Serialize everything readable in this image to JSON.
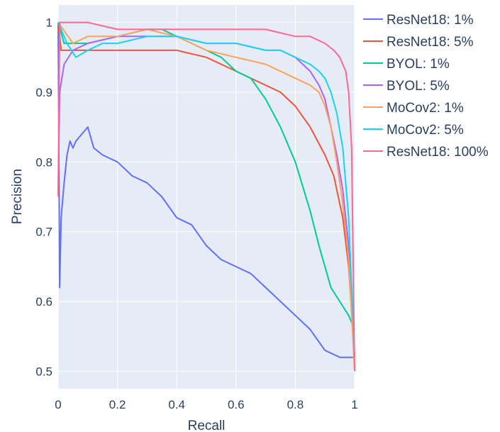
{
  "chart_data": {
    "type": "line",
    "xlabel": "Recall",
    "ylabel": "Precision",
    "xlim": [
      0,
      1
    ],
    "ylim": [
      0.475,
      1.025
    ],
    "x_ticks": [
      0,
      0.2,
      0.4,
      0.6,
      0.8,
      1
    ],
    "x_tick_labels": [
      "0",
      "0.2",
      "0.4",
      "0.6",
      "0.8",
      "1"
    ],
    "y_ticks": [
      0.5,
      0.6,
      0.7,
      0.8,
      0.9,
      1
    ],
    "y_tick_labels": [
      "0.5",
      "0.6",
      "0.7",
      "0.8",
      "0.9",
      "1"
    ],
    "grid": true,
    "legend_position": "top-right",
    "series": [
      {
        "name": "ResNet18: 1%",
        "color": "#636efa",
        "x": [
          0,
          0.005,
          0.01,
          0.02,
          0.03,
          0.04,
          0.05,
          0.06,
          0.08,
          0.1,
          0.12,
          0.15,
          0.2,
          0.25,
          0.3,
          0.35,
          0.4,
          0.45,
          0.5,
          0.55,
          0.6,
          0.65,
          0.7,
          0.75,
          0.8,
          0.85,
          0.9,
          0.95,
          1.0
        ],
        "y": [
          1.0,
          0.62,
          0.72,
          0.77,
          0.81,
          0.83,
          0.82,
          0.83,
          0.84,
          0.85,
          0.82,
          0.81,
          0.8,
          0.78,
          0.77,
          0.75,
          0.72,
          0.71,
          0.68,
          0.66,
          0.65,
          0.64,
          0.62,
          0.6,
          0.58,
          0.56,
          0.53,
          0.52,
          0.52
        ]
      },
      {
        "name": "ResNet18: 5%",
        "color": "#ef553b",
        "x": [
          0,
          0.01,
          0.05,
          0.1,
          0.15,
          0.2,
          0.3,
          0.4,
          0.5,
          0.6,
          0.65,
          0.7,
          0.75,
          0.8,
          0.85,
          0.9,
          0.93,
          0.96,
          0.98,
          1.0
        ],
        "y": [
          1.0,
          0.96,
          0.96,
          0.96,
          0.96,
          0.96,
          0.96,
          0.96,
          0.95,
          0.93,
          0.92,
          0.91,
          0.9,
          0.88,
          0.85,
          0.81,
          0.78,
          0.72,
          0.65,
          0.52
        ]
      },
      {
        "name": "BYOL: 1%",
        "color": "#00cc96",
        "x": [
          0,
          0.02,
          0.05,
          0.1,
          0.2,
          0.3,
          0.35,
          0.4,
          0.5,
          0.55,
          0.6,
          0.65,
          0.7,
          0.75,
          0.8,
          0.85,
          0.88,
          0.9,
          0.92,
          0.95,
          0.98,
          1.0
        ],
        "y": [
          1.0,
          0.97,
          0.97,
          0.97,
          0.98,
          0.99,
          0.99,
          0.98,
          0.96,
          0.95,
          0.93,
          0.92,
          0.89,
          0.85,
          0.8,
          0.73,
          0.68,
          0.65,
          0.62,
          0.6,
          0.58,
          0.56
        ]
      },
      {
        "name": "BYOL: 5%",
        "color": "#ab63fa",
        "x": [
          0,
          0.005,
          0.02,
          0.05,
          0.1,
          0.2,
          0.3,
          0.4,
          0.5,
          0.6,
          0.7,
          0.75,
          0.8,
          0.85,
          0.88,
          0.9,
          0.92,
          0.94,
          0.96,
          0.98,
          1.0
        ],
        "y": [
          0.75,
          0.9,
          0.94,
          0.96,
          0.97,
          0.98,
          0.98,
          0.98,
          0.97,
          0.97,
          0.96,
          0.96,
          0.95,
          0.93,
          0.91,
          0.89,
          0.85,
          0.81,
          0.76,
          0.68,
          0.52
        ]
      },
      {
        "name": "MoCov2: 1%",
        "color": "#ffa15a",
        "x": [
          0,
          0.05,
          0.1,
          0.15,
          0.2,
          0.3,
          0.4,
          0.45,
          0.5,
          0.6,
          0.7,
          0.75,
          0.8,
          0.85,
          0.88,
          0.9,
          0.92,
          0.94,
          0.96,
          0.98,
          1.0
        ],
        "y": [
          1.0,
          0.97,
          0.98,
          0.98,
          0.98,
          0.99,
          0.98,
          0.97,
          0.96,
          0.95,
          0.94,
          0.93,
          0.92,
          0.91,
          0.9,
          0.88,
          0.85,
          0.8,
          0.74,
          0.66,
          0.5
        ]
      },
      {
        "name": "MoCov2: 5%",
        "color": "#19d3f3",
        "x": [
          0,
          0.03,
          0.06,
          0.1,
          0.15,
          0.2,
          0.3,
          0.4,
          0.5,
          0.6,
          0.7,
          0.75,
          0.8,
          0.85,
          0.88,
          0.9,
          0.92,
          0.94,
          0.96,
          0.98,
          1.0
        ],
        "y": [
          1.0,
          0.97,
          0.95,
          0.96,
          0.97,
          0.97,
          0.98,
          0.98,
          0.97,
          0.97,
          0.96,
          0.96,
          0.95,
          0.94,
          0.93,
          0.92,
          0.9,
          0.87,
          0.82,
          0.72,
          0.52
        ]
      },
      {
        "name": "ResNet18: 100%",
        "color": "#ff6692",
        "x": [
          0,
          0.005,
          0.05,
          0.1,
          0.2,
          0.3,
          0.4,
          0.5,
          0.6,
          0.7,
          0.8,
          0.85,
          0.9,
          0.93,
          0.95,
          0.97,
          0.98,
          0.99,
          1.0
        ],
        "y": [
          0.75,
          1.0,
          1.0,
          1.0,
          0.99,
          0.99,
          0.99,
          0.99,
          0.99,
          0.99,
          0.98,
          0.98,
          0.97,
          0.96,
          0.95,
          0.93,
          0.9,
          0.82,
          0.5
        ]
      }
    ]
  }
}
